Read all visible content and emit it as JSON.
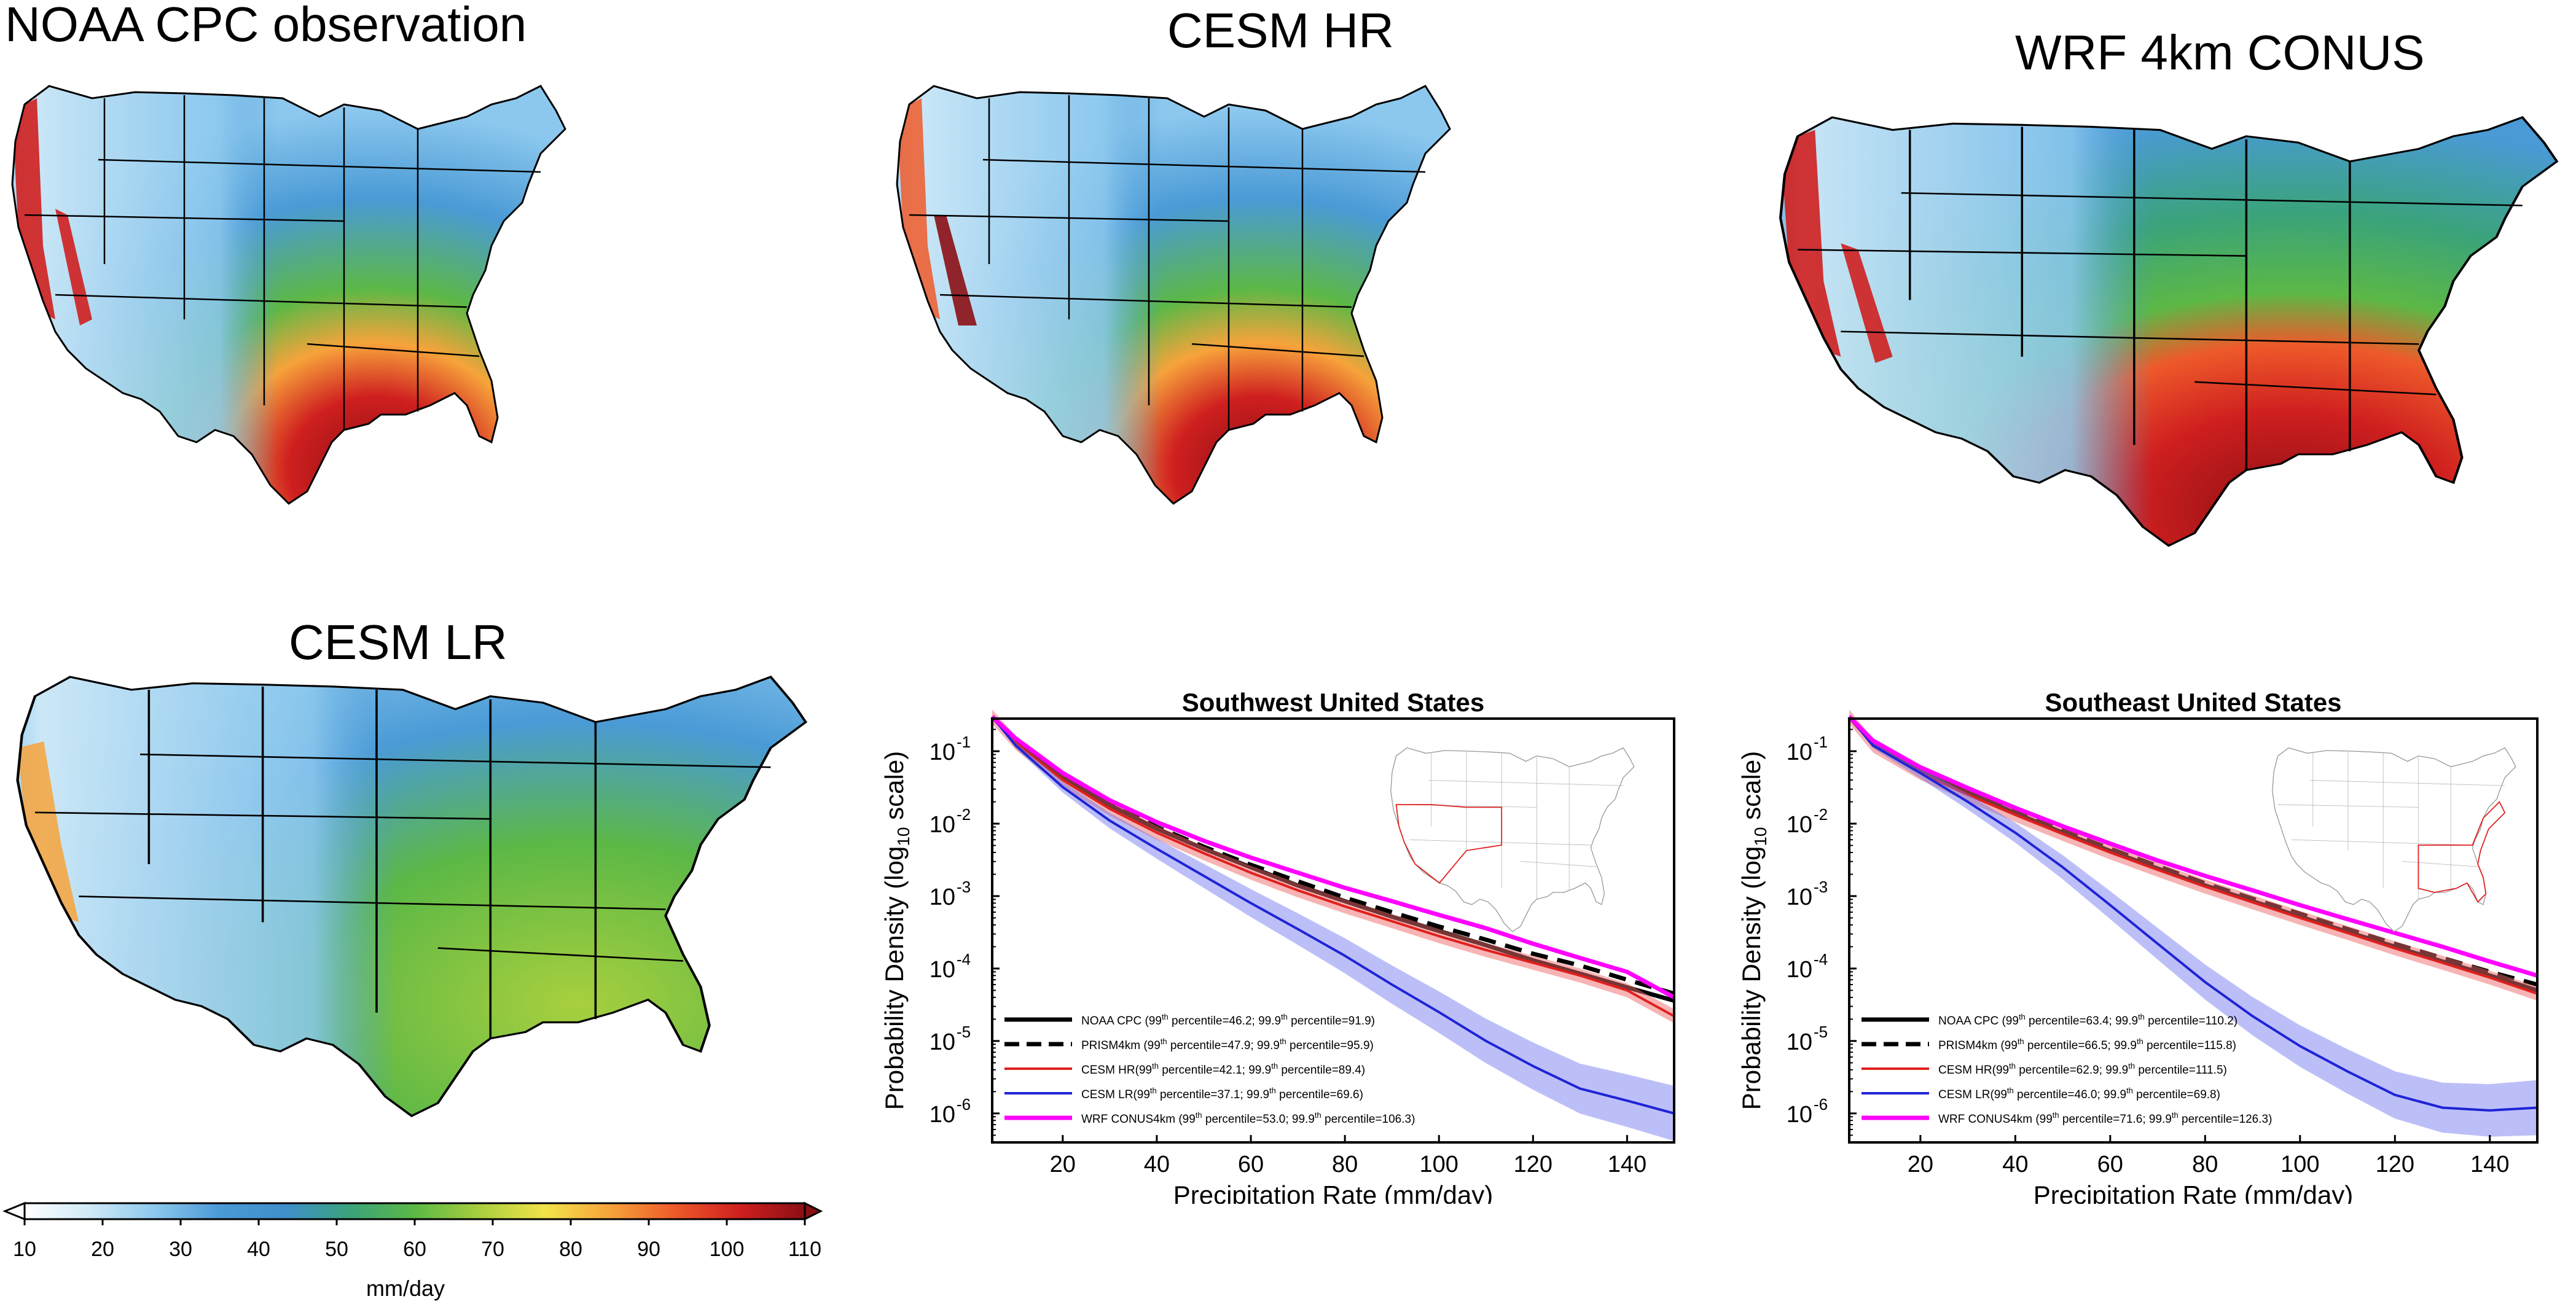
{
  "maps": [
    {
      "title": "NOAA CPC observation"
    },
    {
      "title": "CESM HR"
    },
    {
      "title": "WRF 4km CONUS"
    },
    {
      "title": "CESM LR"
    }
  ],
  "colorbar": {
    "label": "mm/day",
    "ticks": [
      "10",
      "20",
      "30",
      "40",
      "50",
      "60",
      "70",
      "80",
      "90",
      "100",
      "110"
    ],
    "colors": [
      "#ffffff",
      "#cfe9f7",
      "#8cc8ee",
      "#4a9ad6",
      "#3f8fcb",
      "#3aa37a",
      "#5cb846",
      "#a8cf3e",
      "#f2e34a",
      "#f7a33b",
      "#ee5a2a",
      "#cf1f1f",
      "#8b0f14"
    ]
  },
  "chart_data": [
    {
      "type": "line",
      "title": "Southwest United States",
      "xlabel": "Precipitation Rate (mm/day)",
      "ylabel_main": "Probability Density (log",
      "ylabel_sub": "10",
      "ylabel_end": " scale)",
      "xlim": [
        5,
        150
      ],
      "ylim_log10": [
        -6.4,
        -0.55
      ],
      "xticks": [
        "20",
        "40",
        "60",
        "80",
        "100",
        "120",
        "140"
      ],
      "xtick_values": [
        20,
        40,
        60,
        80,
        100,
        120,
        140
      ],
      "ytick_exponents": [
        -1,
        -2,
        -3,
        -4,
        -5,
        -6
      ],
      "ytick_base": "10",
      "ytick_sup": [
        "-1",
        "-2",
        "-3",
        "-4",
        "-5",
        "-6"
      ],
      "legend": [
        {
          "prefix": "NOAA CPC (99",
          "mid": " percentile=46.2; 99.9",
          "suffix": " percentile=91.9)",
          "sup": "th"
        },
        {
          "prefix": "PRISM4km (99",
          "mid": " percentile=47.9; 99.9",
          "suffix": " percentile=95.9)",
          "sup": "th"
        },
        {
          "prefix": "CESM HR(99",
          "mid": " percentile=42.1; 99.9",
          "suffix": " percentile=89.4)",
          "sup": "th"
        },
        {
          "prefix": "CESM LR(99",
          "mid": " percentile=37.1; 99.9",
          "suffix": " percentile=69.6)",
          "sup": "th"
        },
        {
          "prefix": "WRF CONUS4km (99",
          "mid": " percentile=53.0; 99.9",
          "suffix": " percentile=106.3)",
          "sup": "th"
        }
      ],
      "series": [
        {
          "name": "NOAA CPC",
          "color": "#000000",
          "dash": false,
          "width": 7,
          "x": [
            5,
            10,
            20,
            30,
            40,
            50,
            60,
            70,
            80,
            90,
            100,
            110,
            120,
            130,
            140,
            150
          ],
          "y": [
            0.3,
            0.14,
            0.045,
            0.018,
            0.0085,
            0.0045,
            0.0025,
            0.0014,
            0.00085,
            0.00052,
            0.00033,
            0.00021,
            0.00013,
            8.5e-05,
            5.5e-05,
            3.6e-05
          ]
        },
        {
          "name": "PRISM4km",
          "color": "#000000",
          "dash": true,
          "width": 7,
          "x": [
            5,
            10,
            20,
            30,
            40,
            50,
            60,
            70,
            80,
            90,
            100,
            110,
            120,
            130,
            140,
            150
          ],
          "y": [
            0.3,
            0.14,
            0.046,
            0.019,
            0.009,
            0.0048,
            0.0027,
            0.0016,
            0.00095,
            0.0006,
            0.00038,
            0.00025,
            0.00016,
            0.00011,
            7e-05,
            4.5e-05
          ]
        },
        {
          "name": "CESM HR",
          "color": "#e0201e",
          "dash": false,
          "width": 4,
          "x": [
            5,
            10,
            20,
            30,
            40,
            50,
            60,
            70,
            80,
            90,
            100,
            110,
            120,
            130,
            140,
            150
          ],
          "y": [
            0.3,
            0.13,
            0.04,
            0.016,
            0.0075,
            0.0039,
            0.0021,
            0.0012,
            0.00072,
            0.00045,
            0.00028,
            0.00018,
            0.00012,
            8e-05,
            5e-05,
            2.2e-05
          ]
        },
        {
          "name": "CESM LR",
          "color": "#1f24d6",
          "dash": false,
          "width": 4,
          "band": true,
          "x": [
            5,
            10,
            20,
            30,
            40,
            50,
            60,
            70,
            80,
            90,
            100,
            110,
            120,
            130,
            140,
            150
          ],
          "y": [
            0.3,
            0.12,
            0.032,
            0.011,
            0.0045,
            0.0019,
            0.0008,
            0.00035,
            0.00015,
            6e-05,
            2.5e-05,
            1e-05,
            4.5e-06,
            2.2e-06,
            1.5e-06,
            1e-06
          ]
        },
        {
          "name": "WRF CONUS4km",
          "color": "#ff00ff",
          "dash": false,
          "width": 7,
          "x": [
            5,
            10,
            20,
            30,
            40,
            50,
            60,
            70,
            80,
            90,
            100,
            110,
            120,
            130,
            140,
            150
          ],
          "y": [
            0.3,
            0.15,
            0.05,
            0.021,
            0.0105,
            0.0058,
            0.0034,
            0.0021,
            0.0013,
            0.00085,
            0.00055,
            0.00036,
            0.00022,
            0.00014,
            9e-05,
            4e-05
          ]
        }
      ]
    },
    {
      "type": "line",
      "title": "Southeast United States",
      "xlabel": "Precipitation Rate (mm/day)",
      "ylabel_main": "Probability Density (log",
      "ylabel_sub": "10",
      "ylabel_end": " scale)",
      "xlim": [
        5,
        150
      ],
      "ylim_log10": [
        -6.4,
        -0.55
      ],
      "xticks": [
        "20",
        "40",
        "60",
        "80",
        "100",
        "120",
        "140"
      ],
      "xtick_values": [
        20,
        40,
        60,
        80,
        100,
        120,
        140
      ],
      "ytick_exponents": [
        -1,
        -2,
        -3,
        -4,
        -5,
        -6
      ],
      "ytick_base": "10",
      "ytick_sup": [
        "-1",
        "-2",
        "-3",
        "-4",
        "-5",
        "-6"
      ],
      "legend": [
        {
          "prefix": "NOAA CPC (99",
          "mid": " percentile=63.4; 99.9",
          "suffix": " percentile=110.2)",
          "sup": "th"
        },
        {
          "prefix": "PRISM4km (99",
          "mid": " percentile=66.5; 99.9",
          "suffix": " percentile=115.8)",
          "sup": "th"
        },
        {
          "prefix": "CESM HR(99",
          "mid": " percentile=62.9; 99.9",
          "suffix": " percentile=111.5)",
          "sup": "th"
        },
        {
          "prefix": "CESM LR(99",
          "mid": " percentile=46.0; 99.9",
          "suffix": " percentile=69.8)",
          "sup": "th"
        },
        {
          "prefix": "WRF CONUS4km (99",
          "mid": " percentile=71.6; 99.9",
          "suffix": " percentile=126.3)",
          "sup": "th"
        }
      ],
      "series": [
        {
          "name": "NOAA CPC",
          "color": "#000000",
          "dash": false,
          "width": 7,
          "x": [
            5,
            10,
            20,
            30,
            40,
            50,
            60,
            70,
            80,
            90,
            100,
            110,
            120,
            130,
            140,
            150
          ],
          "y": [
            0.3,
            0.13,
            0.055,
            0.027,
            0.014,
            0.0075,
            0.0042,
            0.0024,
            0.0014,
            0.00085,
            0.00052,
            0.00032,
            0.0002,
            0.000125,
            8e-05,
            5e-05
          ]
        },
        {
          "name": "PRISM4km",
          "color": "#000000",
          "dash": true,
          "width": 7,
          "x": [
            5,
            10,
            20,
            30,
            40,
            50,
            60,
            70,
            80,
            90,
            100,
            110,
            120,
            130,
            140,
            150
          ],
          "y": [
            0.3,
            0.13,
            0.056,
            0.028,
            0.0145,
            0.008,
            0.0045,
            0.0026,
            0.0015,
            0.00092,
            0.00057,
            0.00035,
            0.00022,
            0.00014,
            9e-05,
            6e-05
          ]
        },
        {
          "name": "CESM HR",
          "color": "#e0201e",
          "dash": false,
          "width": 4,
          "x": [
            5,
            10,
            20,
            30,
            40,
            50,
            60,
            70,
            80,
            90,
            100,
            110,
            120,
            130,
            140,
            150
          ],
          "y": [
            0.3,
            0.12,
            0.05,
            0.025,
            0.0132,
            0.0072,
            0.004,
            0.0023,
            0.00135,
            0.00082,
            0.0005,
            0.00031,
            0.00019,
            0.00012,
            7.5e-05,
            4.5e-05
          ]
        },
        {
          "name": "CESM LR",
          "color": "#1f24d6",
          "dash": false,
          "width": 4,
          "band": true,
          "x": [
            5,
            10,
            20,
            30,
            40,
            50,
            60,
            70,
            80,
            90,
            100,
            110,
            120,
            130,
            140,
            150
          ],
          "y": [
            0.3,
            0.12,
            0.05,
            0.02,
            0.0075,
            0.0025,
            0.00075,
            0.00022,
            6.5e-05,
            2.2e-05,
            8.5e-06,
            3.8e-06,
            1.8e-06,
            1.2e-06,
            1.1e-06,
            1.2e-06
          ]
        },
        {
          "name": "WRF CONUS4km",
          "color": "#ff00ff",
          "dash": false,
          "width": 7,
          "x": [
            5,
            10,
            20,
            30,
            40,
            50,
            60,
            70,
            80,
            90,
            100,
            110,
            120,
            130,
            140,
            150
          ],
          "y": [
            0.3,
            0.14,
            0.06,
            0.031,
            0.0165,
            0.0092,
            0.0053,
            0.0031,
            0.0019,
            0.0012,
            0.00075,
            0.00048,
            0.00031,
            0.0002,
            0.000125,
            8e-05
          ]
        }
      ]
    }
  ]
}
